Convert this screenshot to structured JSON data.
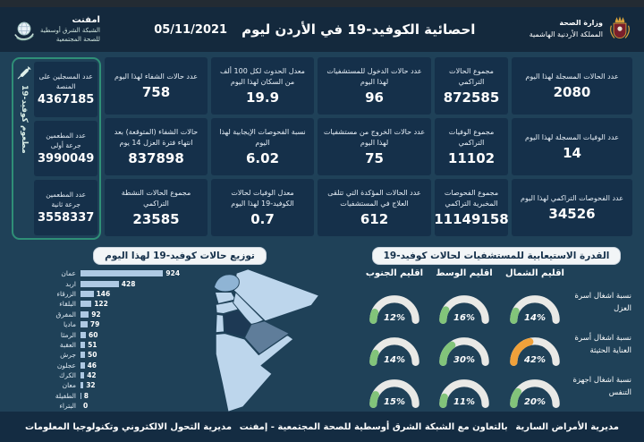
{
  "header": {
    "ministry_name": "وزارة الصحة",
    "ministry_sub": "المملكة الأردنية الهاشمية",
    "title": "احصائية الكوفيد-19 في الأردن ليوم",
    "date": "05/11/2021",
    "emphnet_name": "امفنت",
    "emphnet_sub1": "الشبكة الشرق أوسطية",
    "emphnet_sub2": "للصحة المجتمعية"
  },
  "stats": {
    "columns": [
      {
        "cards": [
          {
            "label": "عدد الحالات المسجلة لهذا اليوم",
            "value": "2080"
          },
          {
            "label": "عدد الوفيات المسجلة لهذا اليوم",
            "value": "14"
          },
          {
            "label": "عدد الفحوصات التراكمي لهذا اليوم",
            "value": "34526"
          }
        ]
      },
      {
        "cards": [
          {
            "label": "مجموع الحالات التراكمي",
            "value": "872585"
          },
          {
            "label": "مجموع الوفيات التراكمي",
            "value": "11102"
          },
          {
            "label": "مجموع الفحوصات المخبرية التراكمي",
            "value": "11149158"
          }
        ]
      },
      {
        "cards": [
          {
            "label": "عدد حالات الدخول للمستشفيات لهذا اليوم",
            "value": "96"
          },
          {
            "label": "عدد حالات الخروج من مستشفيات لهذا اليوم",
            "value": "75"
          },
          {
            "label": "عدد الحالات المؤكدة التي تتلقى العلاج في المستشفيات",
            "value": "612"
          }
        ]
      },
      {
        "cards": [
          {
            "label": "معدل الحدوث لكل 100 ألف من السكان لهذا اليوم",
            "value": "19.9"
          },
          {
            "label": "نسبة الفحوصات الإيجابية لهذا اليوم",
            "value": "6.02"
          },
          {
            "label": "معدل الوفيات لحالات الكوفيد-19 لهذا اليوم",
            "value": "0.7"
          }
        ]
      },
      {
        "cards": [
          {
            "label": "عدد حالات الشفاء لهذا اليوم",
            "value": "758"
          },
          {
            "label": "حالات الشفاء (المتوقعة) بعد انتهاء فترة العزل 14 يوم",
            "value": "837898"
          },
          {
            "label": "مجموع الحالات النشطة التراكمي",
            "value": "23585"
          }
        ]
      }
    ],
    "vaccine_group": {
      "side_label": "مطعوم كوفيد-19",
      "cards": [
        {
          "label": "عدد المسجلين على المنصة",
          "value": "4367185"
        },
        {
          "label": "عدد المطعمين جرعة أولى",
          "value": "3990049"
        },
        {
          "label": "عدد المطعمين جرعة ثانية",
          "value": "3558337"
        }
      ]
    }
  },
  "chart_data": [
    {
      "type": "bar",
      "orientation": "horizontal",
      "title": "توزيع حالات كوفيد-19 لهذا اليوم",
      "categories": [
        "عمان",
        "اربد",
        "الزرقاء",
        "البلقاء",
        "المفرق",
        "ماديا",
        "الرمثا",
        "العقبة",
        "جرش",
        "عجلون",
        "الكرك",
        "معان",
        "الطفيلة",
        "البتراء"
      ],
      "values": [
        924,
        428,
        146,
        122,
        92,
        79,
        60,
        51,
        50,
        46,
        42,
        32,
        8,
        0
      ],
      "xlim": [
        0,
        1000
      ],
      "bar_color": "#aec9e3",
      "value_labels": true
    },
    {
      "type": "gauge-grid",
      "title": "القدرة الاستيعابية للمستشفيات لحالات كوفيد-19",
      "columns": [
        "اقليم الشمال",
        "اقليم الوسط",
        "اقليم الجنوب"
      ],
      "rows": [
        "نسبة اشغال اسرة العزل",
        "نسبة اشغال أسرة العناية الحثيثة",
        "نسبة اشغال اجهزة التنفس"
      ],
      "values": [
        [
          14,
          16,
          12
        ],
        [
          42,
          30,
          14
        ],
        [
          20,
          11,
          15
        ]
      ],
      "colors": [
        [
          "green",
          "green",
          "green"
        ],
        [
          "orange",
          "green",
          "green"
        ],
        [
          "green",
          "green",
          "green"
        ]
      ],
      "unit": "%"
    }
  ],
  "footer": {
    "right": "مديرية الأمراض السارية",
    "center": "بالتعاون مع الشبكة الشرق أوسطية للصحة المجتمعية - إمفنت",
    "left": "مديرية التحول الالكتروني وتكنولوجيا المعلومات"
  },
  "theme": {
    "background": "#1f4158",
    "band": "#14293d",
    "card": "#15304a",
    "vaccine_border": "#2f8f77",
    "bar": "#aec9e3",
    "gauge_green": "#82c47a",
    "gauge_orange": "#f0a13a",
    "gauge_track": "#e9e9e6",
    "map_light": "#bdd6ec",
    "map_medium": "#5f7d9a",
    "map_dark": "#1d3954"
  }
}
